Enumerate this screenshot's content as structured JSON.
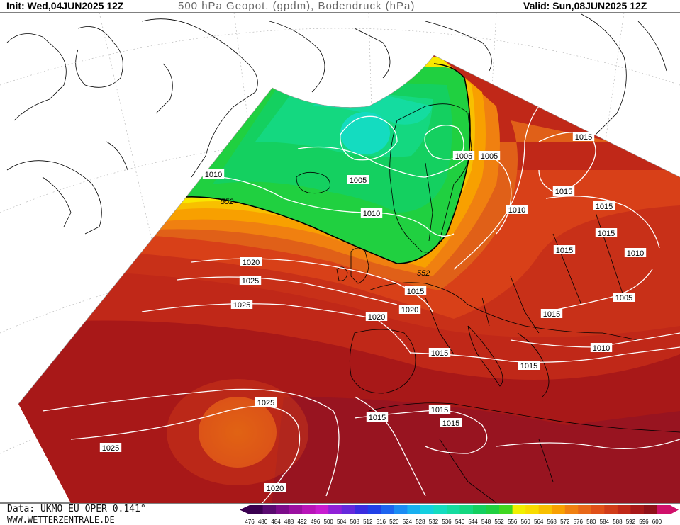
{
  "header": {
    "init": "Init: Wed,04JUN2025 12Z",
    "title": "500 hPa Geopot. (gpdm), Bodendruck (hPa)",
    "valid": "Valid: Sun,08JUN2025 12Z"
  },
  "footer": {
    "data_source": "Data: UKMO EU OPER 0.141°",
    "website": "WWW.WETTERZENTRALE.DE"
  },
  "legend": {
    "values": [
      "476",
      "480",
      "484",
      "488",
      "492",
      "496",
      "500",
      "504",
      "508",
      "512",
      "516",
      "520",
      "524",
      "528",
      "532",
      "536",
      "540",
      "544",
      "548",
      "552",
      "556",
      "560",
      "564",
      "568",
      "572",
      "576",
      "580",
      "584",
      "588",
      "592",
      "596",
      "600"
    ],
    "colors": [
      "#3a0050",
      "#5a0a70",
      "#7c0c8a",
      "#9b10a0",
      "#b814b8",
      "#c81cd0",
      "#9020d8",
      "#6428dc",
      "#3a2ce0",
      "#2040e8",
      "#1c64f0",
      "#1a8cf4",
      "#18b0f0",
      "#14d0e0",
      "#14dcc0",
      "#14dca0",
      "#14d880",
      "#14d060",
      "#20d040",
      "#40d820",
      "#f0f000",
      "#f8dc00",
      "#f8c000",
      "#f8a000",
      "#f08010",
      "#e86818",
      "#e05018",
      "#d03c18",
      "#c02818",
      "#a81818",
      "#901018",
      "#d0106a"
    ]
  },
  "labels": {
    "geopot_552": "552",
    "pressure": [
      "1010",
      "1005",
      "1005",
      "1005",
      "1015",
      "1010",
      "1015",
      "1015",
      "1015",
      "1010",
      "1010",
      "1015",
      "1020",
      "1025",
      "1005",
      "1015",
      "1025",
      "1015",
      "1020",
      "1010",
      "1015",
      "1020",
      "1025",
      "1015",
      "1015",
      "1015",
      "1015",
      "1025",
      "1020"
    ]
  },
  "colors": {
    "green_trough": "#14d060",
    "cyan_core": "#14dcb0",
    "yellow": "#f8f000",
    "orange": "#e87818",
    "dark_red": "#b01818"
  }
}
